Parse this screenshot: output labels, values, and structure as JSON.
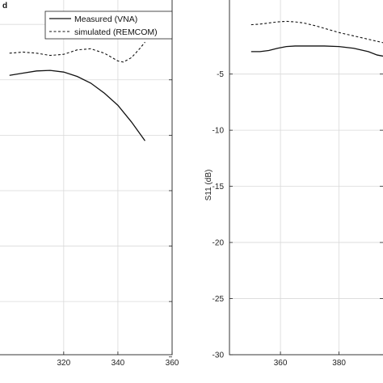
{
  "chart_data": [
    {
      "type": "line",
      "panel_label": "d",
      "xlim": [
        300,
        360
      ],
      "ylim": [
        -30,
        0
      ],
      "x_ticks": [
        320,
        340,
        360
      ],
      "y_ticks": [
        0,
        -5,
        -10,
        -15,
        -20,
        -25,
        -30
      ],
      "x_tick_labels": [
        "320",
        "340",
        "360"
      ],
      "grid": true,
      "legend_position": "top-right",
      "legend": [
        "Measured (VNA)",
        "simulated (REMCOM)"
      ],
      "series": [
        {
          "name": "Measured (VNA)",
          "style": "solid",
          "x": [
            300,
            305,
            310,
            315,
            320,
            325,
            330,
            335,
            340,
            345,
            350
          ],
          "y": [
            -4.6,
            -4.4,
            -4.2,
            -4.15,
            -4.3,
            -4.7,
            -5.3,
            -6.2,
            -7.3,
            -8.8,
            -10.5
          ]
        },
        {
          "name": "simulated (REMCOM)",
          "style": "dashed",
          "x": [
            300,
            305,
            310,
            315,
            320,
            325,
            330,
            335,
            340,
            342,
            345,
            348,
            350
          ],
          "y": [
            -2.6,
            -2.5,
            -2.6,
            -2.8,
            -2.7,
            -2.3,
            -2.2,
            -2.6,
            -3.3,
            -3.4,
            -3.0,
            -2.2,
            -1.6
          ]
        }
      ]
    },
    {
      "type": "line",
      "ylabel": "S11 (dB)",
      "xlim": [
        340,
        395
      ],
      "ylim": [
        -30,
        0
      ],
      "x_ticks": [
        360,
        380
      ],
      "y_ticks": [
        -5,
        -10,
        -15,
        -20,
        -25,
        -30
      ],
      "x_tick_labels": [
        "360",
        "380"
      ],
      "y_tick_labels": [
        "-5",
        "-10",
        "-15",
        "-20",
        "-25",
        "-30"
      ],
      "grid": true,
      "series": [
        {
          "name": "Measured (VNA)",
          "style": "solid",
          "x": [
            350,
            353,
            356,
            359,
            362,
            365,
            370,
            375,
            380,
            385,
            390,
            393,
            395
          ],
          "y": [
            -3.0,
            -3.0,
            -2.9,
            -2.7,
            -2.55,
            -2.5,
            -2.5,
            -2.5,
            -2.55,
            -2.7,
            -3.0,
            -3.3,
            -3.4
          ]
        },
        {
          "name": "simulated (REMCOM)",
          "style": "dashed",
          "x": [
            350,
            353,
            356,
            359,
            362,
            365,
            368,
            372,
            376,
            380,
            385,
            390,
            395
          ],
          "y": [
            -0.6,
            -0.55,
            -0.45,
            -0.35,
            -0.3,
            -0.35,
            -0.45,
            -0.7,
            -1.0,
            -1.3,
            -1.6,
            -1.9,
            -2.2
          ]
        }
      ]
    }
  ],
  "colors": {
    "line": "#111111",
    "grid": "#d9d9d9",
    "frame": "#222222"
  }
}
